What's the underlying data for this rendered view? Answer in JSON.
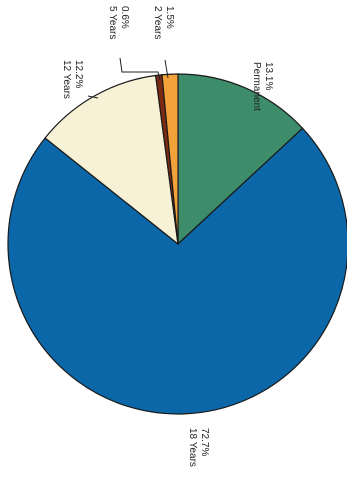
{
  "chart_data": {
    "type": "pie",
    "title": "",
    "labels_rotated": true,
    "slices": [
      {
        "name": "Permanent",
        "value": 13.1,
        "label": "13.1%",
        "color": "#3d8c6a"
      },
      {
        "name": "18 Years",
        "value": 72.7,
        "label": "72.7%",
        "color": "#0b67a8"
      },
      {
        "name": "12 Years",
        "value": 12.2,
        "label": "12.2%",
        "color": "#f7f1d6"
      },
      {
        "name": "5 Years",
        "value": 0.6,
        "label": "0.6%",
        "color": "#7a2a12"
      },
      {
        "name": "2 Years",
        "value": 1.5,
        "label": "1.5%",
        "color": "#f3a13a"
      }
    ]
  }
}
